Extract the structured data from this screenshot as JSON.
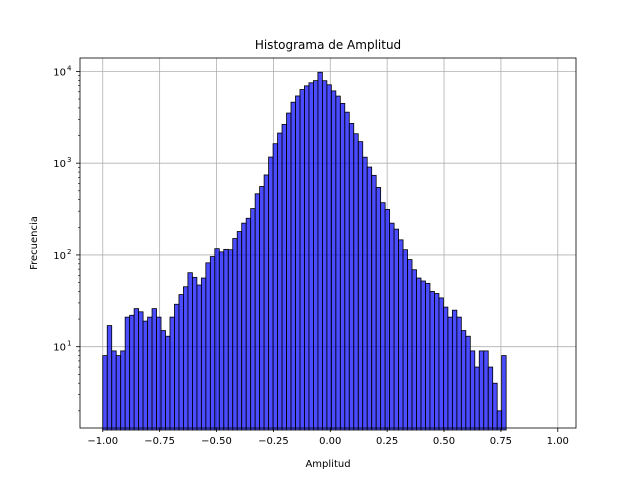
{
  "chart_data": {
    "type": "bar",
    "title": "Histograma de Amplitud",
    "xlabel": "Amplitud",
    "ylabel": "Frecuencia",
    "yscale": "log",
    "xlim": [
      -1.1,
      1.08
    ],
    "ylim": [
      1.3,
      14000
    ],
    "grid": true,
    "bar_color": "#0000ff",
    "bar_opacity": 0.7,
    "edge_color": "#000000",
    "x_ticks": [
      {
        "value": -1.0,
        "label": "−1.00"
      },
      {
        "value": -0.75,
        "label": "−0.75"
      },
      {
        "value": -0.5,
        "label": "−0.50"
      },
      {
        "value": -0.25,
        "label": "−0.25"
      },
      {
        "value": 0.0,
        "label": "0.00"
      },
      {
        "value": 0.25,
        "label": "0.25"
      },
      {
        "value": 0.5,
        "label": "0.50"
      },
      {
        "value": 0.75,
        "label": "0.75"
      },
      {
        "value": 1.0,
        "label": "1.00"
      }
    ],
    "y_ticks": [
      {
        "value": 10,
        "base": "10",
        "exp": "1"
      },
      {
        "value": 100,
        "base": "10",
        "exp": "2"
      },
      {
        "value": 1000,
        "base": "10",
        "exp": "3"
      },
      {
        "value": 10000,
        "base": "10",
        "exp": "4"
      }
    ],
    "bin_start": -1.0,
    "bin_width": 0.0197,
    "values": [
      8,
      17,
      9,
      8,
      9,
      21,
      22,
      26,
      24,
      19,
      21,
      26,
      21,
      15,
      13,
      21,
      29,
      37,
      45,
      64,
      57,
      47,
      56,
      82,
      96,
      117,
      108,
      115,
      114,
      151,
      180,
      222,
      251,
      320,
      464,
      557,
      744,
      1166,
      1630,
      2129,
      2643,
      3516,
      4617,
      5400,
      6346,
      6959,
      7515,
      7932,
      9780,
      7914,
      7153,
      6133,
      5386,
      4483,
      3595,
      2713,
      2092,
      1717,
      1162,
      907,
      737,
      544,
      371,
      313,
      222,
      191,
      146,
      114,
      89,
      69,
      56,
      52,
      49,
      40,
      38,
      34,
      27,
      21,
      25,
      21,
      15,
      13,
      9,
      6,
      9,
      9,
      6,
      4,
      2,
      8
    ]
  }
}
